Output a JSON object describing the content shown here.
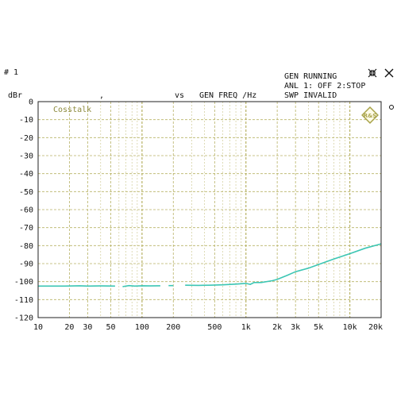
{
  "header": {
    "trace_number": "# 1",
    "y_unit": "dBr",
    "x_separator": ",",
    "vs_label": "vs",
    "x_label": "GEN FREQ /Hz",
    "status_line_1": "GEN RUNNING",
    "status_line_2": "ANL 1: OFF 2:STOP",
    "status_line_3": "SWP INVALID",
    "logo_text": "R&S"
  },
  "chart_data": {
    "type": "line",
    "title": "",
    "trace_label": "Cosstalk",
    "xlabel": "GEN FREQ /Hz",
    "ylabel": "dBr",
    "xscale": "log",
    "xlim": [
      10,
      20000
    ],
    "ylim": [
      -120,
      0
    ],
    "grid": true,
    "x_ticks": [
      10,
      20,
      30,
      50,
      100,
      200,
      500,
      1000,
      2000,
      3000,
      5000,
      10000,
      20000
    ],
    "x_tick_labels": [
      "10",
      "20",
      "30",
      "50",
      "100",
      "200",
      "500",
      "1k",
      "2k",
      "3k",
      "5k",
      "10k",
      "20k"
    ],
    "y_ticks": [
      0,
      -10,
      -20,
      -30,
      -40,
      -50,
      -60,
      -70,
      -80,
      -90,
      -100,
      -110,
      -120
    ],
    "y_tick_labels": [
      "0",
      "-10",
      "-20",
      "-30",
      "-40",
      "-50",
      "-60",
      "-70",
      "-80",
      "-90",
      "-100",
      "-110",
      "-120"
    ],
    "series": [
      {
        "name": "Cosstalk",
        "color": "#3cc6b4",
        "segments": [
          {
            "x": [
              10,
              18,
              25,
              30,
              40,
              55
            ],
            "y": [
              -102.5,
              -102.5,
              -102.3,
              -102.5,
              -102.4,
              -102.5
            ]
          },
          {
            "x": [
              65,
              75,
              85,
              100,
              120,
              150
            ],
            "y": [
              -102.8,
              -102.2,
              -102.5,
              -102.3,
              -102.4,
              -102.3
            ]
          },
          {
            "x": [
              180,
              200
            ],
            "y": [
              -102.2,
              -102.2
            ]
          },
          {
            "x": [
              260,
              350,
              450,
              600,
              800,
              1000,
              1100,
              1200,
              1400,
              1800,
              2000,
              2500,
              3000,
              4000,
              5000,
              7000,
              10000,
              14000,
              20000
            ],
            "y": [
              -102.0,
              -102.1,
              -102.0,
              -101.8,
              -101.4,
              -101.0,
              -101.5,
              -100.5,
              -100.5,
              -99.5,
              -98.8,
              -96.5,
              -94.5,
              -92.5,
              -90.5,
              -87.5,
              -84.5,
              -81.5,
              -79.0
            ]
          }
        ]
      }
    ]
  },
  "colors": {
    "grid": "#b8b366",
    "grid_dense": "#c9c488",
    "axis": "#222222",
    "trace": "#3cc6b4",
    "label": "#8c8a3c"
  }
}
